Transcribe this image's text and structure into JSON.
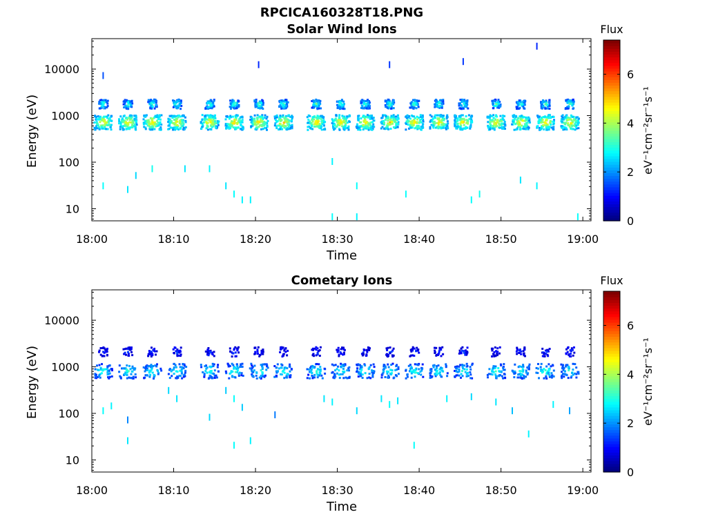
{
  "figure": {
    "title": "RPCICA160328T18.PNG"
  },
  "chart_data": [
    {
      "type": "heatmap",
      "title": "Solar Wind Ions",
      "xlabel": "Time",
      "ylabel": "Energy (eV)",
      "x_ticks": [
        "18:00",
        "18:10",
        "18:20",
        "18:30",
        "18:40",
        "18:50",
        "19:00"
      ],
      "x_range": [
        "18:00",
        "19:01"
      ],
      "y_ticks": [
        "10",
        "100",
        "1000",
        "10000"
      ],
      "y_range": [
        5.5,
        45000
      ],
      "y_scale": "log",
      "colorbar": {
        "label": "eV⁻¹cm⁻²sr⁻¹s⁻¹",
        "title": "Flux",
        "ticks": [
          "0",
          "2",
          "4",
          "6"
        ],
        "range": [
          0,
          7.4
        ],
        "colormap": "jet"
      },
      "grid": false,
      "sweep_times": [
        "18:01",
        "18:04",
        "18:07",
        "18:10",
        "18:14",
        "18:17",
        "18:20",
        "18:23",
        "18:27",
        "18:30",
        "18:33",
        "18:36",
        "18:39",
        "18:42",
        "18:45",
        "18:49",
        "18:52",
        "18:55",
        "18:58"
      ],
      "peak_energy_eV": [
        750,
        1850
      ],
      "peak_flux": [
        5.0,
        3.5
      ],
      "scatter_points": [
        [
          "18:01",
          30,
          2.8
        ],
        [
          "18:04",
          25,
          2.6
        ],
        [
          "18:05",
          50,
          2.5
        ],
        [
          "18:07",
          70,
          2.9
        ],
        [
          "18:17",
          20,
          2.8
        ],
        [
          "18:18",
          15,
          2.7
        ],
        [
          "18:19",
          15,
          2.7
        ],
        [
          "18:29",
          6.5,
          2.8
        ],
        [
          "18:32",
          6.5,
          2.7
        ],
        [
          "18:32",
          30,
          2.8
        ],
        [
          "18:38",
          20,
          2.8
        ],
        [
          "18:46",
          15,
          2.8
        ],
        [
          "18:47",
          20,
          2.9
        ],
        [
          "18:52",
          40,
          2.6
        ],
        [
          "18:54",
          30,
          2.7
        ],
        [
          "18:59",
          6.5,
          2.8
        ],
        [
          "18:16",
          30,
          2.6
        ],
        [
          "18:11",
          70,
          2.6
        ],
        [
          "18:14",
          70,
          2.7
        ],
        [
          "18:29",
          100,
          2.7
        ],
        [
          "18:01",
          7000,
          1.5
        ],
        [
          "18:20",
          12000,
          1.2
        ],
        [
          "18:36",
          12000,
          1.3
        ],
        [
          "18:54",
          30000,
          1.2
        ],
        [
          "18:45",
          14000,
          1.3
        ]
      ]
    },
    {
      "type": "heatmap",
      "title": "Cometary Ions",
      "xlabel": "Time",
      "ylabel": "Energy (eV)",
      "x_ticks": [
        "18:00",
        "18:10",
        "18:20",
        "18:30",
        "18:40",
        "18:50",
        "19:00"
      ],
      "x_range": [
        "18:00",
        "19:01"
      ],
      "y_ticks": [
        "10",
        "100",
        "1000",
        "10000"
      ],
      "y_range": [
        5.5,
        45000
      ],
      "y_scale": "log",
      "colorbar": {
        "label": "eV⁻¹cm⁻²sr⁻¹s⁻¹",
        "title": "Flux",
        "ticks": [
          "0",
          "2",
          "4",
          "6"
        ],
        "range": [
          0,
          7.4
        ],
        "colormap": "jet"
      },
      "grid": false,
      "sweep_times": [
        "18:01",
        "18:04",
        "18:07",
        "18:10",
        "18:14",
        "18:17",
        "18:20",
        "18:23",
        "18:27",
        "18:30",
        "18:33",
        "18:36",
        "18:39",
        "18:42",
        "18:45",
        "18:49",
        "18:52",
        "18:55",
        "18:58"
      ],
      "peak_energy_eV": [
        850,
        2200
      ],
      "peak_flux": [
        3.2,
        1.3
      ],
      "scatter_points": [
        [
          "18:01",
          110,
          2.8
        ],
        [
          "18:02",
          140,
          2.7
        ],
        [
          "18:04",
          70,
          1.9
        ],
        [
          "18:04",
          25,
          2.6
        ],
        [
          "18:09",
          300,
          2.5
        ],
        [
          "18:10",
          200,
          2.6
        ],
        [
          "18:14",
          80,
          2.5
        ],
        [
          "18:16",
          300,
          2.4
        ],
        [
          "18:17",
          200,
          2.8
        ],
        [
          "18:17",
          20,
          2.8
        ],
        [
          "18:18",
          130,
          2.4
        ],
        [
          "18:19",
          25,
          2.7
        ],
        [
          "18:22",
          90,
          1.8
        ],
        [
          "18:28",
          200,
          2.6
        ],
        [
          "18:29",
          170,
          2.7
        ],
        [
          "18:32",
          110,
          2.5
        ],
        [
          "18:35",
          200,
          2.6
        ],
        [
          "18:36",
          150,
          2.8
        ],
        [
          "18:37",
          180,
          2.6
        ],
        [
          "18:39",
          20,
          2.8
        ],
        [
          "18:43",
          200,
          2.7
        ],
        [
          "18:46",
          220,
          2.5
        ],
        [
          "18:49",
          170,
          2.6
        ],
        [
          "18:51",
          110,
          2.3
        ],
        [
          "18:53",
          35,
          2.7
        ],
        [
          "18:56",
          150,
          2.7
        ],
        [
          "18:58",
          110,
          2.1
        ]
      ]
    }
  ]
}
